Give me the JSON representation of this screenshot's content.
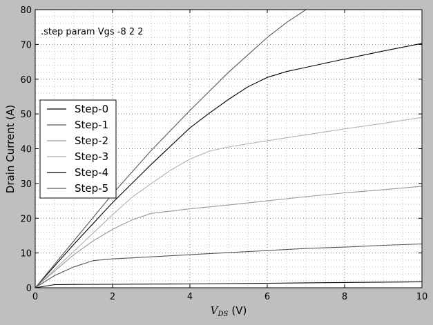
{
  "chart_data": {
    "type": "line",
    "annotation": ".step param Vgs -8 2 2",
    "xlabel_symbol": "V",
    "xlabel_subscript": "DS",
    "xlabel_unit": "(V)",
    "ylabel": "Drain Current (A)",
    "xlim": [
      0,
      10
    ],
    "ylim": [
      0,
      80
    ],
    "xticks": [
      0,
      2,
      4,
      6,
      8,
      10
    ],
    "yticks": [
      0,
      10,
      20,
      30,
      40,
      50,
      60,
      70,
      80
    ],
    "grid": true,
    "legend_position": "center-left",
    "series": [
      {
        "name": "Step-0",
        "color": "#000000",
        "x": [
          0,
          0.5,
          1,
          2,
          3,
          4,
          5,
          6,
          7,
          8,
          9,
          10
        ],
        "y": [
          0,
          0.9,
          0.95,
          1.0,
          1.05,
          1.1,
          1.2,
          1.3,
          1.4,
          1.5,
          1.6,
          1.7
        ]
      },
      {
        "name": "Step-1",
        "color": "#555555",
        "x": [
          0,
          0.5,
          1,
          1.5,
          2,
          3,
          4,
          5,
          6,
          7,
          8,
          9,
          10
        ],
        "y": [
          0,
          3.5,
          6.0,
          7.8,
          8.3,
          8.9,
          9.5,
          10.1,
          10.7,
          11.3,
          11.7,
          12.2,
          12.6
        ]
      },
      {
        "name": "Step-2",
        "color": "#999999",
        "x": [
          0,
          0.5,
          1,
          1.5,
          2,
          2.5,
          3,
          4,
          5,
          6,
          7,
          8,
          9,
          10
        ],
        "y": [
          0,
          4.8,
          9.5,
          13.5,
          16.8,
          19.5,
          21.4,
          22.7,
          23.8,
          25.0,
          26.2,
          27.3,
          28.2,
          29.2
        ]
      },
      {
        "name": "Step-3",
        "color": "#b0b0b0",
        "x": [
          0,
          1,
          2,
          2.5,
          3,
          3.5,
          4,
          4.5,
          5,
          6,
          7,
          8,
          9,
          10
        ],
        "y": [
          0,
          10.5,
          21.0,
          26.0,
          30.0,
          33.8,
          37.0,
          39.3,
          40.5,
          42.3,
          44.0,
          45.7,
          47.3,
          49.0
        ]
      },
      {
        "name": "Step-4",
        "color": "#000000",
        "x": [
          0,
          1,
          2,
          3,
          4,
          4.5,
          5,
          5.5,
          6,
          6.5,
          7,
          8,
          9,
          10
        ],
        "y": [
          0,
          12.5,
          24.5,
          35.5,
          46.0,
          50.2,
          54.2,
          57.8,
          60.5,
          62.2,
          63.4,
          65.8,
          68.1,
          70.3
        ]
      },
      {
        "name": "Step-5",
        "color": "#5a5a5a",
        "x": [
          0,
          1,
          2,
          3,
          4,
          5,
          6,
          6.5,
          7
        ],
        "y": [
          0,
          13.5,
          27.0,
          39.5,
          51.0,
          62.0,
          72.0,
          76.3,
          80.0
        ]
      }
    ]
  }
}
